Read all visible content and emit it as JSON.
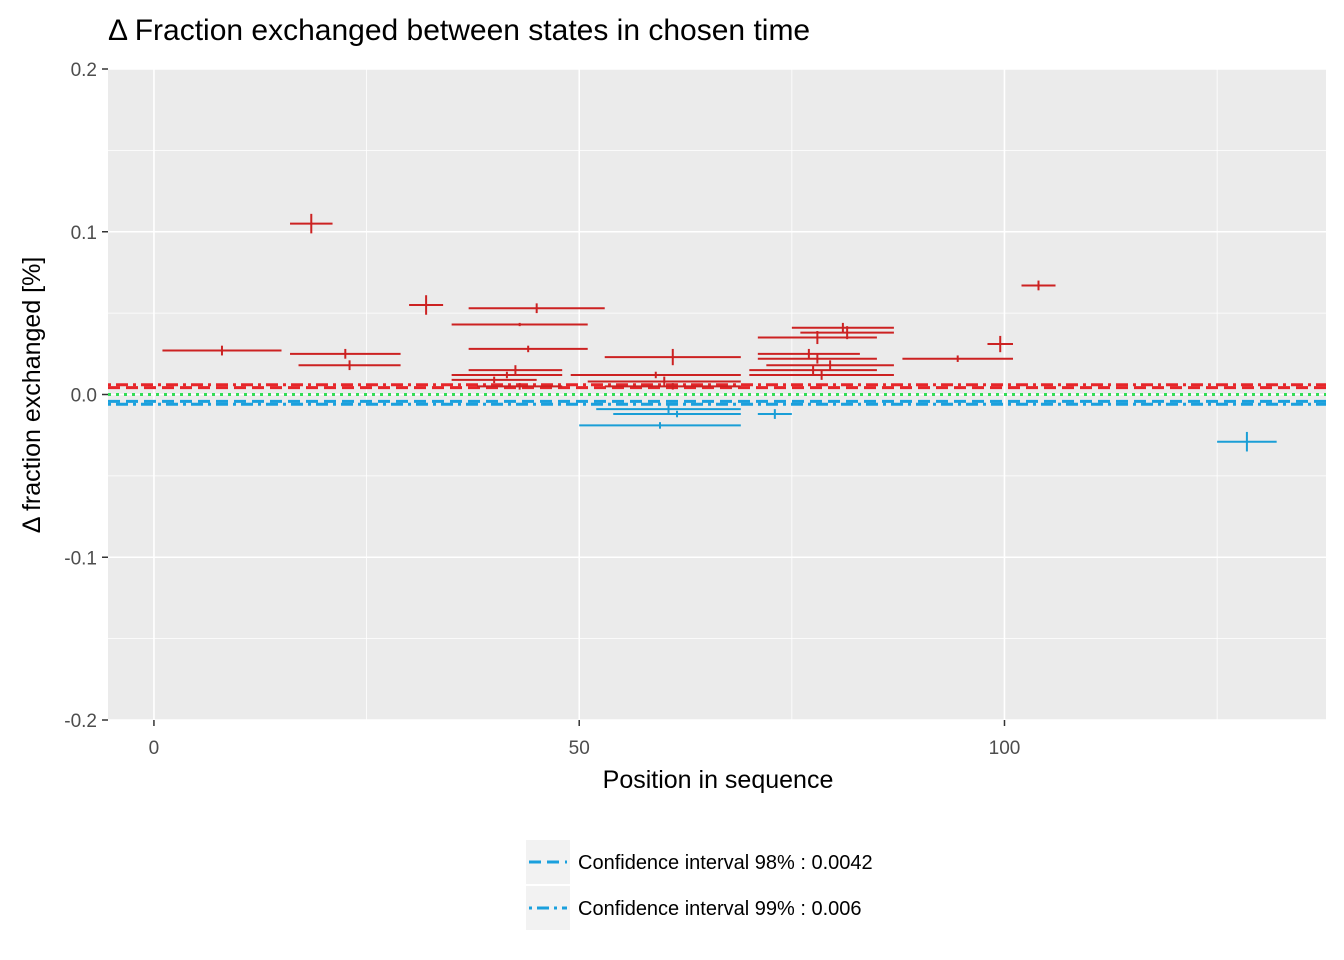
{
  "chart_data": {
    "type": "scatter",
    "title": "Δ Fraction exchanged between states in chosen time",
    "xlabel": "Position in sequence",
    "ylabel": "Δ fraction exchanged [%]",
    "xlim": [
      -5.4,
      137.8
    ],
    "ylim": [
      -0.2,
      0.2
    ],
    "x_ticks": [
      0,
      50,
      100
    ],
    "x_tick_labels": [
      "0",
      "50",
      "100"
    ],
    "y_ticks": [
      -0.2,
      -0.1,
      0.0,
      0.1,
      0.2
    ],
    "y_tick_labels": [
      "-0.2",
      "-0.1",
      "0.0",
      "0.1",
      "0.2"
    ],
    "grid": true,
    "legend_position": "bottom",
    "colors": {
      "positive": "#cc2222",
      "negative": "#1a9ed6",
      "ci_positive": "#e6262a",
      "ci_negative": "#1aa0dd",
      "zero_line": "#33dd55",
      "panel": "#ebebeb",
      "gridline": "#ffffff"
    },
    "series": [
      {
        "sign": "positive",
        "points": [
          {
            "start": 1,
            "end": 15,
            "y": 0.027,
            "err": 0.003
          },
          {
            "start": 16,
            "end": 21,
            "y": 0.105,
            "err": 0.006
          },
          {
            "start": 16,
            "end": 29,
            "y": 0.025,
            "err": 0.003
          },
          {
            "start": 17,
            "end": 29,
            "y": 0.018,
            "err": 0.003
          },
          {
            "start": 30,
            "end": 34,
            "y": 0.055,
            "err": 0.006
          },
          {
            "start": 35,
            "end": 51,
            "y": 0.043,
            "err": 0.001
          },
          {
            "start": 37,
            "end": 51,
            "y": 0.028,
            "err": 0.002
          },
          {
            "start": 37,
            "end": 53,
            "y": 0.053,
            "err": 0.003
          },
          {
            "start": 35,
            "end": 48,
            "y": 0.012,
            "err": 0.002
          },
          {
            "start": 37,
            "end": 48,
            "y": 0.015,
            "err": 0.003
          },
          {
            "start": 35,
            "end": 45,
            "y": 0.009,
            "err": 0.002
          },
          {
            "start": 38,
            "end": 48,
            "y": 0.005,
            "err": 0.002
          },
          {
            "start": 49,
            "end": 69,
            "y": 0.012,
            "err": 0.002
          },
          {
            "start": 51,
            "end": 69,
            "y": 0.008,
            "err": 0.003
          },
          {
            "start": 53,
            "end": 69,
            "y": 0.005,
            "err": 0.002
          },
          {
            "start": 53,
            "end": 69,
            "y": 0.023,
            "err": 0.005
          },
          {
            "start": 71,
            "end": 85,
            "y": 0.035,
            "err": 0.004
          },
          {
            "start": 75,
            "end": 87,
            "y": 0.041,
            "err": 0.003
          },
          {
            "start": 76,
            "end": 87,
            "y": 0.038,
            "err": 0.004
          },
          {
            "start": 71,
            "end": 83,
            "y": 0.025,
            "err": 0.003
          },
          {
            "start": 71,
            "end": 85,
            "y": 0.022,
            "err": 0.003
          },
          {
            "start": 72,
            "end": 87,
            "y": 0.018,
            "err": 0.003
          },
          {
            "start": 70,
            "end": 85,
            "y": 0.015,
            "err": 0.003
          },
          {
            "start": 70,
            "end": 87,
            "y": 0.012,
            "err": 0.003
          },
          {
            "start": 88,
            "end": 101,
            "y": 0.022,
            "err": 0.002
          },
          {
            "start": 98,
            "end": 101,
            "y": 0.031,
            "err": 0.005
          },
          {
            "start": 102,
            "end": 106,
            "y": 0.067,
            "err": 0.003
          }
        ]
      },
      {
        "sign": "negative",
        "points": [
          {
            "start": 50,
            "end": 69,
            "y": -0.019,
            "err": 0.002
          },
          {
            "start": 52,
            "end": 69,
            "y": -0.009,
            "err": 0.003
          },
          {
            "start": 54,
            "end": 69,
            "y": -0.012,
            "err": 0.002
          },
          {
            "start": 71,
            "end": 75,
            "y": -0.012,
            "err": 0.003
          },
          {
            "start": 125,
            "end": 132,
            "y": -0.029,
            "err": 0.006
          }
        ]
      }
    ],
    "reference_lines": [
      {
        "kind": "ci98",
        "y": 0.0042,
        "style": "dashed",
        "color": "positive"
      },
      {
        "kind": "ci99",
        "y": 0.006,
        "style": "dotdash",
        "color": "positive"
      },
      {
        "kind": "zero",
        "y": 0.0,
        "style": "dotted",
        "color": "zero_line"
      },
      {
        "kind": "ci98",
        "y": -0.0042,
        "style": "dashed",
        "color": "negative"
      },
      {
        "kind": "ci99",
        "y": -0.006,
        "style": "dotdash",
        "color": "negative"
      }
    ],
    "legend": [
      {
        "style": "dashed",
        "label": "Confidence interval 98% : 0.0042"
      },
      {
        "style": "dotdash",
        "label": "Confidence interval 99% : 0.006"
      }
    ]
  }
}
